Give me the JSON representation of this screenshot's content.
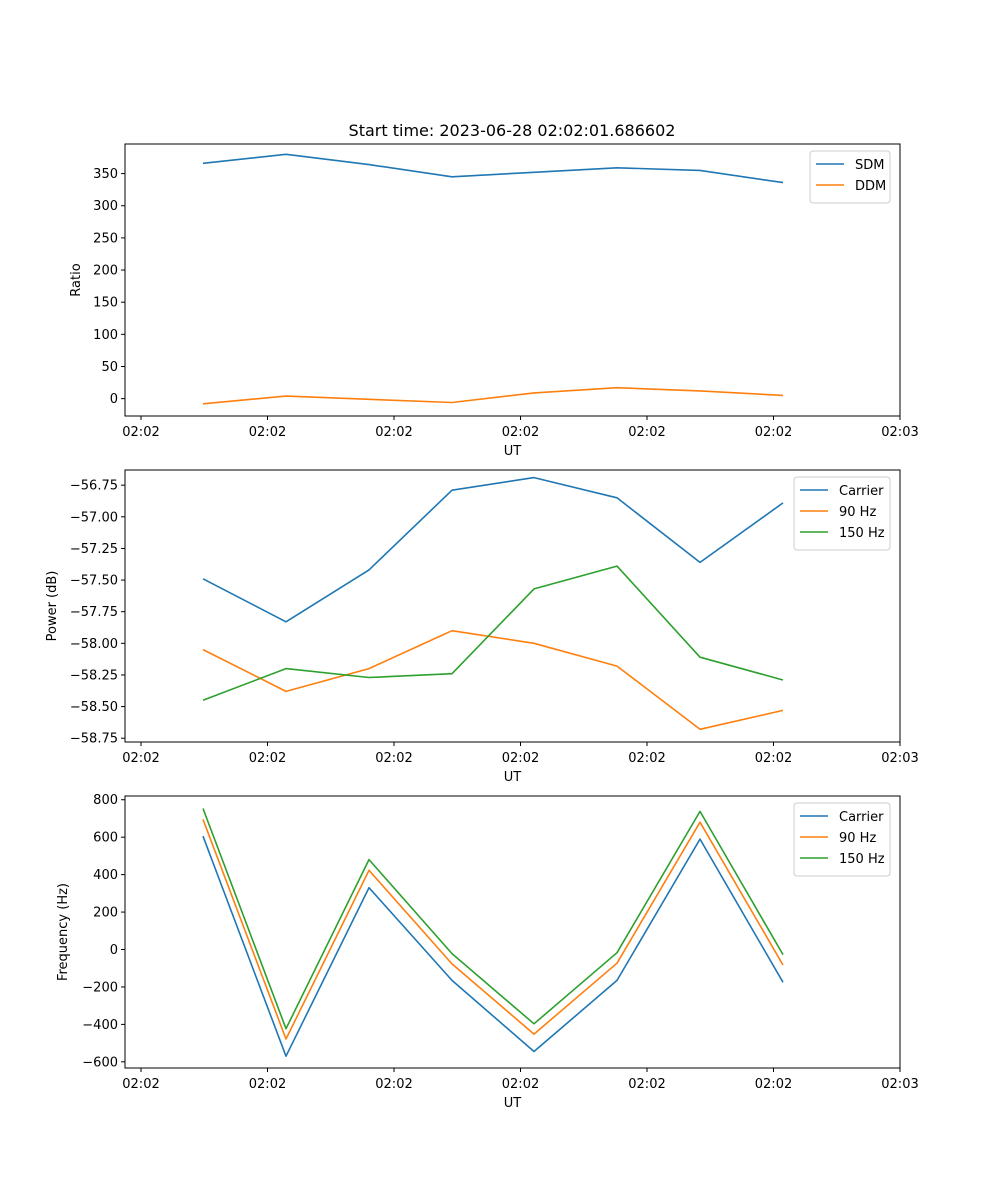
{
  "title": "Start time: 2023-06-28 02:02:01.686602",
  "colors": {
    "blue": "#1f77b4",
    "orange": "#ff7f0e",
    "green": "#2ca02c"
  },
  "chart_data": [
    {
      "type": "line",
      "title": "Start time: 2023-06-28 02:02:01.686602",
      "xlabel": "UT",
      "ylabel": "Ratio",
      "x_tick_labels": [
        "02:02",
        "02:02",
        "02:02",
        "02:02",
        "02:02",
        "02:02",
        "02:03"
      ],
      "y_ticks": [
        0,
        50,
        100,
        150,
        200,
        250,
        300,
        350
      ],
      "y_tick_labels": [
        "0",
        "50",
        "100",
        "150",
        "200",
        "250",
        "300",
        "350"
      ],
      "ylim": [
        -27,
        396
      ],
      "legend": "top-right",
      "grid": false,
      "x": [
        0,
        1,
        2,
        3,
        4,
        5,
        6,
        7
      ],
      "series": [
        {
          "name": "SDM",
          "color": "#1f77b4",
          "values": [
            366,
            380,
            364,
            345,
            352,
            359,
            355,
            336
          ]
        },
        {
          "name": "DDM",
          "color": "#ff7f0e",
          "values": [
            -8,
            4,
            -1,
            -6,
            9,
            17,
            12,
            5
          ]
        }
      ]
    },
    {
      "type": "line",
      "title": "",
      "xlabel": "UT",
      "ylabel": "Power (dB)",
      "x_tick_labels": [
        "02:02",
        "02:02",
        "02:02",
        "02:02",
        "02:02",
        "02:02",
        "02:03"
      ],
      "y_ticks": [
        -56.75,
        -57.0,
        -57.25,
        -57.5,
        -57.75,
        -58.0,
        -58.25,
        -58.5,
        -58.75
      ],
      "y_tick_labels": [
        "−56.75",
        "−57.00",
        "−57.25",
        "−57.50",
        "−57.75",
        "−58.00",
        "−58.25",
        "−58.50",
        "−58.75"
      ],
      "ylim": [
        -58.78,
        -56.63
      ],
      "legend": "top-right",
      "grid": false,
      "x": [
        0,
        1,
        2,
        3,
        4,
        5,
        6,
        7
      ],
      "series": [
        {
          "name": "Carrier",
          "color": "#1f77b4",
          "values": [
            -57.49,
            -57.83,
            -57.42,
            -56.79,
            -56.69,
            -56.85,
            -57.36,
            -56.89
          ]
        },
        {
          "name": "90 Hz",
          "color": "#ff7f0e",
          "values": [
            -58.05,
            -58.38,
            -58.2,
            -57.9,
            -58.0,
            -58.18,
            -58.68,
            -58.53
          ]
        },
        {
          "name": "150 Hz",
          "color": "#2ca02c",
          "values": [
            -58.45,
            -58.2,
            -58.27,
            -58.24,
            -57.57,
            -57.39,
            -58.11,
            -58.29
          ]
        }
      ]
    },
    {
      "type": "line",
      "title": "",
      "xlabel": "UT",
      "ylabel": "Frequency (Hz)",
      "x_tick_labels": [
        "02:02",
        "02:02",
        "02:02",
        "02:02",
        "02:02",
        "02:02",
        "02:03"
      ],
      "y_ticks": [
        800,
        600,
        400,
        200,
        0,
        -200,
        -400,
        -600
      ],
      "y_tick_labels": [
        "800",
        "600",
        "400",
        "200",
        "0",
        "−200",
        "−400",
        "−600"
      ],
      "ylim": [
        -633,
        820
      ],
      "legend": "top-right",
      "grid": false,
      "x": [
        0,
        1,
        2,
        3,
        4,
        5,
        6,
        7
      ],
      "series": [
        {
          "name": "Carrier",
          "color": "#1f77b4",
          "values": [
            605,
            -570,
            330,
            -165,
            -545,
            -165,
            590,
            -175
          ]
        },
        {
          "name": "90 Hz",
          "color": "#ff7f0e",
          "values": [
            695,
            -478,
            423,
            -77,
            -452,
            -73,
            680,
            -83
          ]
        },
        {
          "name": "150 Hz",
          "color": "#2ca02c",
          "values": [
            753,
            -423,
            480,
            -22,
            -397,
            -17,
            738,
            -27
          ]
        }
      ]
    }
  ]
}
